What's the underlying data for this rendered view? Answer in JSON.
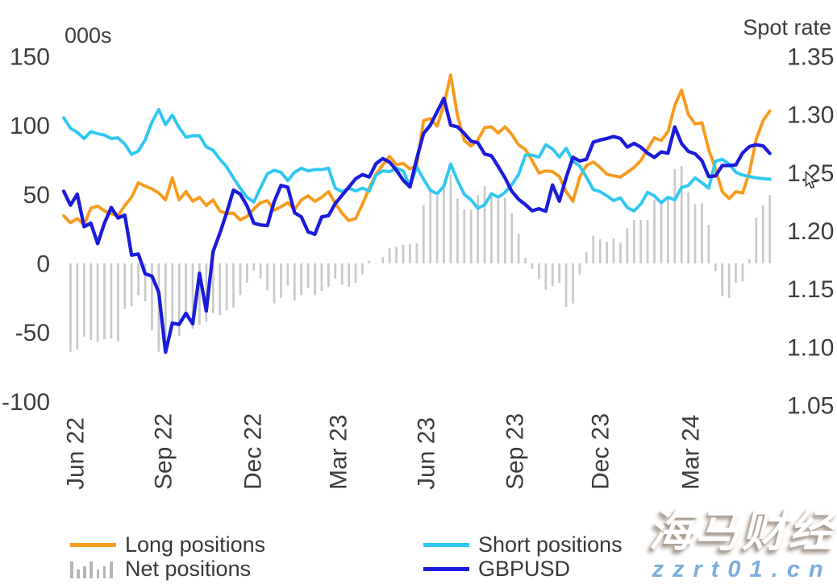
{
  "chart_data": {
    "type": "combo",
    "title": "",
    "left_axis": {
      "title": "000s",
      "ticks": [
        150,
        100,
        50,
        0,
        -50,
        -100
      ],
      "range": [
        -100,
        150
      ]
    },
    "right_axis": {
      "title": "Spot rate",
      "ticks": [
        1.35,
        1.3,
        1.25,
        1.2,
        1.15,
        1.1,
        1.05
      ],
      "range": [
        1.05,
        1.35
      ]
    },
    "x_axis": {
      "tick_labels": [
        "Jun 22",
        "Sep 22",
        "Dec 22",
        "Mar 23",
        "Jun 23",
        "Sep 23",
        "Dec 23",
        "Mar 24"
      ],
      "tick_positions": [
        1.66,
        14.61,
        27.79,
        40.38,
        53.33,
        66.39,
        78.98,
        92.28
      ],
      "n_points": 105,
      "frequency": "weekly"
    },
    "grid": false,
    "legend_position": "bottom",
    "series": [
      {
        "name": "Net positions",
        "type": "bar",
        "axis": "left",
        "color": "#c9c9c9",
        "values": [
          null,
          -64,
          -62.5,
          -53,
          -55.5,
          -57,
          -55,
          -54.5,
          -56.5,
          -33,
          -31,
          -23.0,
          -27.5,
          -48.5,
          -64,
          -54.5,
          -45.5,
          -52.5,
          -39.5,
          -47.5,
          -44.5,
          -42.5,
          -36,
          -37.5,
          -34,
          -32,
          -23.0,
          -14,
          -5.0,
          -11,
          -19.5,
          -29.0,
          -25,
          -16,
          -27,
          -23,
          -18,
          -23,
          -20,
          -17,
          -11.0,
          -15.5,
          -17,
          -14,
          -8,
          2.0,
          0.5,
          4.5,
          11.0,
          12,
          13.5,
          14,
          14.5,
          42.5,
          52,
          49.0,
          59,
          64.5,
          47,
          39,
          39,
          49.5,
          56.0,
          48.5,
          46.5,
          47.5,
          36.5,
          21.5,
          4.0,
          -4.0,
          -11.5,
          -19,
          -16.5,
          -14,
          -31.5,
          -29,
          -8.0,
          8.5,
          20.0,
          17.5,
          15.5,
          18.0,
          15.0,
          25.5,
          31.5,
          31.5,
          31.5,
          46,
          45,
          47.5,
          68.5,
          70.5,
          51.5,
          43,
          43.5,
          28.0,
          -5.5,
          -23.5,
          -25,
          -14,
          -13,
          3,
          33,
          42.0,
          49.5
        ]
      },
      {
        "name": "Long positions",
        "type": "line",
        "axis": "left",
        "color": "#f79b1e",
        "values": [
          34.5,
          29.5,
          32.5,
          28,
          40,
          41.5,
          38,
          36,
          34.5,
          42,
          48,
          58.5,
          56,
          54,
          51,
          46,
          62,
          46,
          52,
          45,
          48,
          42,
          46,
          38,
          36,
          36.5,
          31.5,
          34,
          39.5,
          44,
          45.5,
          38.5,
          41,
          44,
          39,
          46,
          49,
          45,
          48,
          52,
          43.5,
          36.5,
          31,
          32.5,
          43,
          54.5,
          64.5,
          71.5,
          77.5,
          71.5,
          72.5,
          68.5,
          71,
          103.5,
          105,
          99.5,
          115,
          136.5,
          107,
          89,
          85,
          89.5,
          98.5,
          99,
          94.5,
          99,
          93.5,
          86,
          82.5,
          74.5,
          65.5,
          67,
          66.5,
          63,
          52,
          45,
          62.5,
          71,
          73.5,
          69.5,
          64.5,
          63.5,
          62.5,
          66,
          69.5,
          74.5,
          83,
          91,
          89,
          95.5,
          114.5,
          125.5,
          108,
          101,
          102,
          82.5,
          68.5,
          52,
          47,
          52,
          51,
          66,
          90,
          103.5,
          110.5
        ]
      },
      {
        "name": "Short positions",
        "type": "line",
        "axis": "left",
        "color": "#30c7f2",
        "values": [
          105.5,
          98,
          95,
          90.5,
          95.5,
          94,
          93,
          90.5,
          91,
          86.5,
          79,
          81.5,
          89.5,
          102.5,
          111.5,
          100.5,
          107.5,
          98.5,
          91.5,
          92.5,
          92.5,
          84.5,
          82,
          75.5,
          70,
          62,
          54.5,
          48,
          44.5,
          55,
          65,
          67.5,
          66,
          60,
          66,
          69,
          67,
          68,
          68,
          69,
          54.5,
          52,
          54.5,
          52.5,
          54.5,
          52.5,
          64,
          67,
          66.5,
          69,
          67,
          56,
          70,
          61,
          53,
          50.5,
          56,
          72,
          60,
          50,
          46,
          40,
          42.5,
          50.5,
          48,
          51.5,
          57,
          64.5,
          78.5,
          78.5,
          77,
          86,
          83,
          77,
          83.5,
          74,
          70.5,
          62.5,
          53.5,
          52,
          49,
          45.5,
          47.5,
          40.5,
          38,
          43,
          51.5,
          49,
          44,
          48,
          46,
          55,
          56.5,
          62,
          58.5,
          54.5,
          74,
          75.5,
          72,
          66,
          64,
          63,
          62,
          61.5,
          61
        ]
      },
      {
        "name": "GBPUSD",
        "type": "line",
        "axis": "right",
        "color": "#1b1bdc",
        "values": [
          1.234,
          1.222,
          1.2315,
          1.2035,
          1.2065,
          1.189,
          1.2065,
          1.22,
          1.211,
          1.2135,
          1.179,
          1.18,
          1.163,
          1.161,
          1.147,
          1.0955,
          1.1205,
          1.1195,
          1.129,
          1.12,
          1.1635,
          1.131,
          1.182,
          1.198,
          1.2155,
          1.235,
          1.2315,
          1.2215,
          1.2065,
          1.205,
          1.2045,
          1.225,
          1.239,
          1.2375,
          1.2155,
          1.212,
          1.199,
          1.197,
          1.212,
          1.213,
          1.2235,
          1.2305,
          1.2375,
          1.2448,
          1.2483,
          1.2463,
          1.2578,
          1.2621,
          1.259,
          1.2521,
          1.2435,
          1.2377,
          1.2621,
          1.2837,
          1.2908,
          1.3023,
          1.3139,
          1.2908,
          1.2894,
          1.2837,
          1.277,
          1.2757,
          1.266,
          1.2644,
          1.2552,
          1.2455,
          1.234,
          1.2271,
          1.2225,
          1.2172,
          1.219,
          1.2168,
          1.2394,
          1.2255,
          1.2457,
          1.2632,
          1.26,
          1.2615,
          1.2763,
          1.278,
          1.2794,
          1.2811,
          1.2794,
          1.272,
          1.2752,
          1.272,
          1.2667,
          1.2631,
          1.2678,
          1.2667,
          1.2894,
          1.2751,
          1.2683,
          1.2662,
          1.2603,
          1.2466,
          1.2472,
          1.2561,
          1.2561,
          1.2567,
          1.267,
          1.2725,
          1.274,
          1.273,
          1.2665
        ]
      }
    ],
    "legend": {
      "columns": [
        [
          {
            "label": "Long positions",
            "swatch": "line",
            "color": "#f79b1e"
          },
          {
            "label": "Net positions",
            "swatch": "bars",
            "color": "#b5b5b5"
          }
        ],
        [
          {
            "label": "Short positions",
            "swatch": "line",
            "color": "#30c7f2"
          },
          {
            "label": "GBPUSD",
            "swatch": "line",
            "color": "#1b1bdc"
          }
        ]
      ]
    }
  },
  "watermark": {
    "line1": "海马财经",
    "line2": "zzrt01.cn"
  }
}
